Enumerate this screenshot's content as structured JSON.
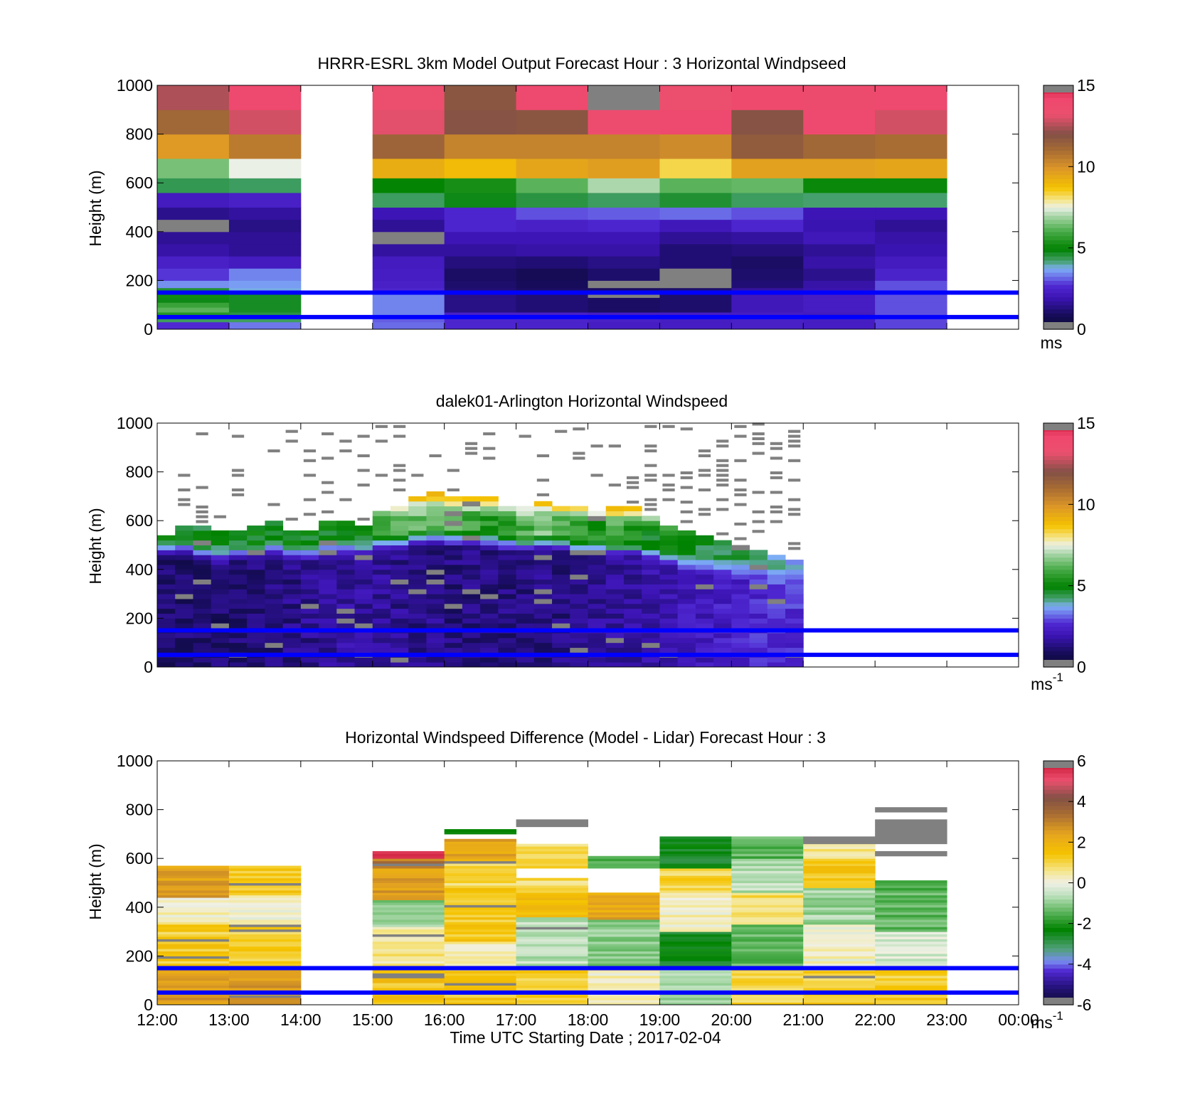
{
  "figure": {
    "xlabel": "Time UTC  Starting Date ; 2017-02-04",
    "x_ticks": [
      "12:00",
      "13:00",
      "14:00",
      "15:00",
      "16:00",
      "17:00",
      "18:00",
      "19:00",
      "20:00",
      "21:00",
      "22:00",
      "23:00",
      "00:00"
    ]
  },
  "colors": {
    "reference_lines": "#0000ff",
    "missing": "#808080"
  },
  "chart_data": [
    {
      "type": "heatmap",
      "title": "HRRR-ESRL 3km Model Output   Forecast Hour : 3 Horizontal Windpseed",
      "ylabel": "Height (m)",
      "ylim": [
        0,
        1000
      ],
      "y_ticks": [
        "0",
        "200",
        "400",
        "600",
        "800",
        "1000"
      ],
      "xlim_hours": [
        12,
        24
      ],
      "colorbar": {
        "min": 0,
        "max": 15,
        "ticks": [
          "0",
          "5",
          "10",
          "15"
        ],
        "unit": "ms",
        "unit_sup": "",
        "colormap": "speed"
      },
      "reference_lines_m": [
        50,
        150
      ],
      "levels_m": [
        0,
        30,
        50,
        70,
        90,
        110,
        130,
        150,
        170,
        200,
        250,
        300,
        350,
        400,
        450,
        500,
        560,
        620,
        700,
        800,
        900,
        1000
      ],
      "columns": [
        {
          "hour": 12,
          "values": [
            2.7,
            4.3,
            5.5,
            6.2,
            5.8,
            4.8,
            5.2,
            4.6,
            3.5,
            2.8,
            2.4,
            1.8,
            1.6,
            -1,
            1.5,
            2.2,
            4.4,
            6.5,
            9.8,
            11.2,
            12.5
          ]
        },
        {
          "hour": 13,
          "values": [
            3.3,
            4.3,
            4.5,
            4.7,
            4.7,
            4.7,
            4.7,
            3.8,
            3.6,
            3.4,
            2.2,
            1.6,
            1.6,
            1.4,
            1.7,
            2.4,
            4.3,
            7.5,
            10.6,
            12.9,
            13.9
          ]
        },
        {
          "hour": 14,
          "values": [
            null,
            null,
            null,
            null,
            null,
            null,
            null,
            null,
            null,
            null,
            null,
            null,
            null,
            null,
            null,
            null,
            null,
            null,
            null,
            null,
            null
          ]
        },
        {
          "hour": 15,
          "values": [
            3.2,
            3.1,
            3.4,
            3.4,
            3.4,
            3.4,
            3.4,
            2.6,
            2.4,
            2.3,
            2.2,
            1.7,
            -1,
            1.6,
            2.0,
            4.3,
            5.0,
            9.3,
            11.3,
            13.1,
            13.4
          ]
        },
        {
          "hour": 16,
          "values": [
            2.6,
            2.6,
            2.4,
            1.4,
            1.4,
            1.4,
            1.4,
            1.2,
            1.1,
            1.0,
            1.3,
            1.7,
            2.0,
            2.6,
            2.6,
            4.8,
            5.3,
            8.9,
            10.4,
            11.9,
            11.8
          ]
        },
        {
          "hour": 17,
          "values": [
            2.5,
            2.5,
            2.4,
            1.2,
            1.2,
            1.2,
            1.2,
            1.0,
            0.9,
            0.8,
            1.2,
            1.8,
            2.0,
            2.4,
            3.0,
            4.5,
            6.2,
            9.5,
            10.4,
            11.8,
            13.9
          ]
        },
        {
          "hour": 18,
          "values": [
            2.3,
            2.4,
            2.3,
            1.0,
            1.0,
            1.0,
            -1,
            1.0,
            -1,
            1.1,
            1.4,
            1.8,
            2.0,
            2.6,
            3.1,
            4.3,
            7.0,
            9.7,
            10.4,
            13.6,
            -1
          ]
        },
        {
          "hour": 19,
          "values": [
            2.3,
            2.3,
            2.3,
            1.1,
            1.1,
            1.1,
            1.1,
            1.1,
            -1,
            -1,
            1.2,
            1.2,
            1.6,
            2.1,
            3.2,
            4.6,
            6.2,
            8.3,
            10.2,
            13.9,
            13.4
          ]
        },
        {
          "hour": 20,
          "values": [
            2.4,
            2.4,
            2.3,
            2.1,
            2.1,
            2.1,
            2.1,
            1.7,
            1.2,
            1.1,
            1.0,
            1.3,
            1.7,
            2.6,
            3.0,
            4.3,
            6.3,
            9.6,
            11.6,
            11.9,
            13.8
          ]
        },
        {
          "hour": 21,
          "values": [
            2.3,
            2.3,
            2.2,
            2.3,
            2.3,
            2.3,
            2.3,
            1.9,
            1.8,
            1.5,
            1.8,
            1.6,
            2.1,
            1.9,
            2.0,
            4.2,
            5.1,
            9.6,
            11.2,
            13.9,
            13.7
          ]
        },
        {
          "hour": 22,
          "values": [
            2.9,
            2.9,
            3.0,
            3.0,
            3.0,
            3.0,
            3.0,
            3.0,
            3.0,
            2.5,
            2.2,
            1.9,
            1.8,
            1.6,
            2.0,
            4.2,
            5.1,
            9.5,
            11.0,
            12.9,
            13.9
          ]
        },
        {
          "hour": 23,
          "values": [
            null,
            null,
            null,
            null,
            null,
            null,
            null,
            null,
            null,
            null,
            null,
            null,
            null,
            null,
            null,
            null,
            null,
            null,
            null,
            null,
            null
          ]
        }
      ]
    },
    {
      "type": "heatmap",
      "title": "dalek01-Arlington  Horizontal Windspeed",
      "ylabel": "Height (m)",
      "ylim": [
        0,
        1000
      ],
      "y_ticks": [
        "0",
        "200",
        "400",
        "600",
        "800",
        "1000"
      ],
      "xlim_hours": [
        12,
        24
      ],
      "colorbar": {
        "min": 0,
        "max": 15,
        "ticks": [
          "0",
          "5",
          "10",
          "15"
        ],
        "unit": "ms",
        "unit_sup": "-1",
        "colormap": "speed"
      },
      "reference_lines_m": [
        50,
        150
      ],
      "profile_interval_hours": 0.25,
      "bin_height_m": 20,
      "tops_m": [
        540,
        580,
        570,
        550,
        560,
        580,
        600,
        560,
        560,
        590,
        600,
        580,
        640,
        660,
        700,
        720,
        700,
        690,
        690,
        650,
        660,
        680,
        660,
        650,
        640,
        660,
        650,
        620,
        580,
        550,
        540,
        520,
        500,
        470,
        450,
        440
      ],
      "jet_m": [
        560,
        560,
        540,
        530,
        540,
        550,
        560,
        540,
        540,
        560,
        570,
        560,
        580,
        590,
        610,
        610,
        600,
        600,
        590,
        580,
        580,
        590,
        580,
        570,
        560,
        560,
        560,
        540,
        520,
        500,
        490,
        480,
        470,
        450,
        440,
        430
      ],
      "jet_speed": [
        5,
        5,
        4.8,
        4.6,
        4.8,
        5,
        5,
        4.8,
        4.8,
        5,
        5,
        5,
        5.5,
        6,
        6.5,
        6,
        6,
        6,
        5.5,
        5.5,
        6,
        6.5,
        6,
        6,
        5.5,
        6,
        5.5,
        5,
        5,
        4.8,
        4.6,
        4.4,
        4.2,
        4,
        4,
        3.8
      ],
      "low_level_speed": [
        1.1,
        1.1,
        1.0,
        1.1,
        1.2,
        1.3,
        1.3,
        1.4,
        1.5,
        1.6,
        1.7,
        1.7,
        1.6,
        1.5,
        1.4,
        1.4,
        1.3,
        1.3,
        1.3,
        1.3,
        1.3,
        1.4,
        1.4,
        1.5,
        1.6,
        1.7,
        1.7,
        1.8,
        1.9,
        2.1,
        2.2,
        2.3,
        2.4,
        2.5,
        2.6,
        2.6
      ]
    },
    {
      "type": "heatmap",
      "title": "Horizontal Windspeed Difference (Model - Lidar) Forecast Hour : 3",
      "ylabel": "Height (m)",
      "ylim": [
        0,
        1000
      ],
      "y_ticks": [
        "0",
        "200",
        "400",
        "600",
        "800",
        "1000"
      ],
      "xlim_hours": [
        12,
        24
      ],
      "colorbar": {
        "min": -6,
        "max": 6,
        "ticks": [
          "-6",
          "-4",
          "-2",
          "0",
          "2",
          "4",
          "6"
        ],
        "unit": "ms",
        "unit_sup": "-1",
        "colormap": "diff"
      },
      "reference_lines_m": [
        50,
        150
      ],
      "columns": [
        {
          "hour": 12,
          "top_m": 570,
          "gaps": [],
          "segments": [
            [
              0,
              150,
              2.6
            ],
            [
              150,
              330,
              1.2
            ],
            [
              330,
              440,
              0.3
            ],
            [
              440,
              570,
              2.4
            ]
          ]
        },
        {
          "hour": 13,
          "top_m": 570,
          "gaps": [],
          "segments": [
            [
              0,
              150,
              2.5
            ],
            [
              150,
              330,
              1.2
            ],
            [
              330,
              450,
              0.1
            ],
            [
              450,
              570,
              1.3
            ]
          ]
        },
        {
          "hour": 14,
          "top_m": 0,
          "gaps": [],
          "segments": []
        },
        {
          "hour": 15,
          "top_m": 630,
          "gaps": [],
          "segments": [
            [
              0,
              150,
              1.4
            ],
            [
              150,
              320,
              0.6
            ],
            [
              320,
              430,
              -1.0
            ],
            [
              430,
              560,
              2.5
            ],
            [
              560,
              600,
              3.2
            ],
            [
              600,
              630,
              5.5
            ]
          ]
        },
        {
          "hour": 16,
          "top_m": 720,
          "gaps": [
            [
              680,
              700
            ]
          ],
          "segments": [
            [
              0,
              150,
              1.3
            ],
            [
              150,
              260,
              0.3
            ],
            [
              260,
              480,
              1.3
            ],
            [
              480,
              580,
              0.9
            ],
            [
              580,
              680,
              2.3
            ],
            [
              700,
              720,
              -2.2
            ]
          ]
        },
        {
          "hour": 17,
          "top_m": 760,
          "gaps": [
            [
              520,
              640
            ],
            [
              660,
              730
            ]
          ],
          "segments": [
            [
              0,
              150,
              1.2
            ],
            [
              150,
              360,
              -0.6
            ],
            [
              360,
              460,
              1.5
            ],
            [
              460,
              520,
              0.8
            ],
            [
              560,
              640,
              1.0
            ],
            [
              640,
              660,
              0.8
            ],
            [
              730,
              760,
              -6.0
            ]
          ]
        },
        {
          "hour": 18,
          "top_m": 610,
          "gaps": [
            [
              460,
              560
            ]
          ],
          "segments": [
            [
              0,
              150,
              0.2
            ],
            [
              150,
              350,
              -1.0
            ],
            [
              350,
              460,
              2.3
            ],
            [
              560,
              610,
              -1.5
            ]
          ]
        },
        {
          "hour": 19,
          "top_m": 690,
          "gaps": [],
          "segments": [
            [
              0,
              150,
              -0.8
            ],
            [
              150,
              300,
              -2.4
            ],
            [
              300,
              460,
              0.2
            ],
            [
              460,
              560,
              1.0
            ],
            [
              560,
              690,
              -2.6
            ]
          ]
        },
        {
          "hour": 20,
          "top_m": 690,
          "gaps": [],
          "segments": [
            [
              0,
              150,
              1.0
            ],
            [
              150,
              330,
              -1.3
            ],
            [
              330,
              460,
              0.8
            ],
            [
              460,
              600,
              -0.6
            ],
            [
              600,
              690,
              -1.4
            ]
          ]
        },
        {
          "hour": 21,
          "top_m": 690,
          "gaps": [],
          "segments": [
            [
              0,
              150,
              1.2
            ],
            [
              150,
              330,
              0.2
            ],
            [
              330,
              480,
              -0.8
            ],
            [
              480,
              600,
              1.3
            ],
            [
              600,
              660,
              0.6
            ],
            [
              660,
              690,
              -6.0
            ]
          ]
        },
        {
          "hour": 22,
          "top_m": 810,
          "gaps": [
            [
              510,
              610
            ],
            [
              630,
              660
            ],
            [
              760,
              790
            ]
          ],
          "segments": [
            [
              0,
              150,
              1.2
            ],
            [
              150,
              300,
              -0.3
            ],
            [
              300,
              510,
              -1.4
            ],
            [
              610,
              630,
              -6.0
            ],
            [
              660,
              760,
              -6.0
            ],
            [
              790,
              810,
              -6.0
            ]
          ]
        },
        {
          "hour": 23,
          "top_m": 0,
          "gaps": [],
          "segments": []
        }
      ]
    }
  ]
}
